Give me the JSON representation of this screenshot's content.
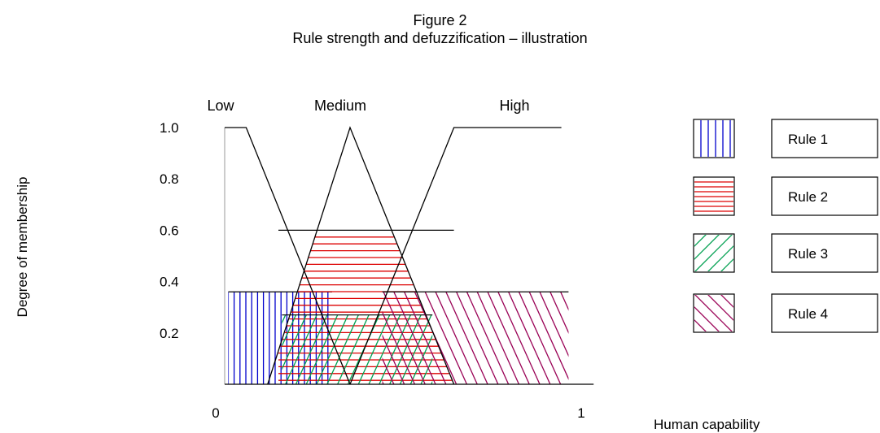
{
  "chart_data": {
    "type": "area",
    "title": "Figure 2",
    "subtitle": "Rule strength and defuzzification – illustration",
    "xlabel": "Human capability",
    "ylabel": "Degree of membership",
    "xlim": [
      0,
      1
    ],
    "ylim": [
      0,
      1
    ],
    "x_ticks": [
      {
        "value": 0,
        "label": "0"
      },
      {
        "value": 1,
        "label": "1"
      }
    ],
    "y_ticks": [
      {
        "value": 0.2,
        "label": "0.2"
      },
      {
        "value": 0.4,
        "label": "0.4"
      },
      {
        "value": 0.6,
        "label": "0.6"
      },
      {
        "value": 0.8,
        "label": "0.8"
      },
      {
        "value": 1.0,
        "label": "1.0"
      }
    ],
    "membership_functions": [
      {
        "name": "Low",
        "points": [
          [
            0,
            1.0
          ],
          [
            0.06,
            1.0
          ],
          [
            0.35,
            0.0
          ]
        ]
      },
      {
        "name": "Medium",
        "points": [
          [
            0.12,
            0.0
          ],
          [
            0.35,
            1.0
          ],
          [
            0.64,
            0.0
          ]
        ]
      },
      {
        "name": "High",
        "points": [
          [
            0.35,
            0.0
          ],
          [
            0.64,
            1.0
          ],
          [
            0.94,
            1.0
          ]
        ]
      }
    ],
    "rules": [
      {
        "name": "Rule 1",
        "color": "#0000cc",
        "hatch": "vertical",
        "strength": 0.36,
        "x_range": [
          0.01,
          0.3
        ]
      },
      {
        "name": "Rule 2",
        "color": "#dd0000",
        "hatch": "horizontal",
        "strength": 0.6,
        "x_range": [
          0.15,
          0.64
        ]
      },
      {
        "name": "Rule 3",
        "color": "#00a050",
        "hatch": "diagonal-up",
        "strength": 0.27,
        "x_range": [
          0.16,
          0.58
        ]
      },
      {
        "name": "Rule 4",
        "color": "#990055",
        "hatch": "diagonal-down",
        "strength": 0.36,
        "x_range": [
          0.44,
          0.96
        ]
      }
    ],
    "legend_position": "right",
    "grid": false
  }
}
